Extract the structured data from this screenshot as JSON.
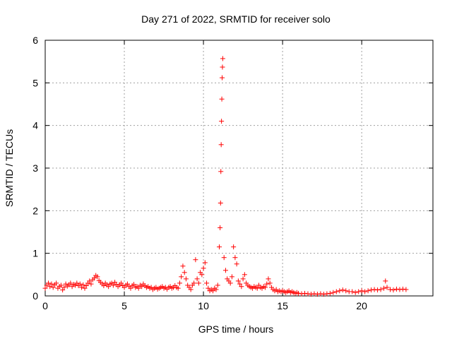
{
  "chart_data": {
    "type": "scatter",
    "title": "Day 271 of 2022, SRMTID for receiver solo",
    "xlabel": "GPS time / hours",
    "ylabel": "SRMTID / TECUs",
    "xlim": [
      0,
      24.5
    ],
    "ylim": [
      0,
      6
    ],
    "x_ticks": [
      0,
      5,
      10,
      15,
      20
    ],
    "y_ticks": [
      0,
      1,
      2,
      3,
      4,
      5,
      6
    ],
    "x_tick_labels": [
      "0",
      "5",
      "10",
      "15",
      "20"
    ],
    "y_tick_labels": [
      "0",
      "1",
      "2",
      "3",
      "4",
      "5",
      "6"
    ],
    "grid": true,
    "marker": "plus",
    "color": "#ff0000",
    "series": [
      {
        "name": "SRMTID",
        "points": [
          [
            0.0,
            0.18
          ],
          [
            0.1,
            0.25
          ],
          [
            0.2,
            0.3
          ],
          [
            0.3,
            0.22
          ],
          [
            0.4,
            0.28
          ],
          [
            0.5,
            0.2
          ],
          [
            0.6,
            0.26
          ],
          [
            0.7,
            0.3
          ],
          [
            0.8,
            0.18
          ],
          [
            0.9,
            0.22
          ],
          [
            1.0,
            0.25
          ],
          [
            1.1,
            0.14
          ],
          [
            1.2,
            0.2
          ],
          [
            1.3,
            0.28
          ],
          [
            1.4,
            0.23
          ],
          [
            1.5,
            0.26
          ],
          [
            1.6,
            0.3
          ],
          [
            1.7,
            0.22
          ],
          [
            1.8,
            0.27
          ],
          [
            1.9,
            0.25
          ],
          [
            2.0,
            0.3
          ],
          [
            2.1,
            0.24
          ],
          [
            2.2,
            0.28
          ],
          [
            2.3,
            0.2
          ],
          [
            2.4,
            0.26
          ],
          [
            2.5,
            0.18
          ],
          [
            2.6,
            0.24
          ],
          [
            2.7,
            0.3
          ],
          [
            2.8,
            0.35
          ],
          [
            2.9,
            0.28
          ],
          [
            3.0,
            0.38
          ],
          [
            3.1,
            0.42
          ],
          [
            3.2,
            0.48
          ],
          [
            3.3,
            0.45
          ],
          [
            3.4,
            0.36
          ],
          [
            3.5,
            0.32
          ],
          [
            3.6,
            0.28
          ],
          [
            3.7,
            0.24
          ],
          [
            3.8,
            0.3
          ],
          [
            3.9,
            0.26
          ],
          [
            4.0,
            0.22
          ],
          [
            4.1,
            0.28
          ],
          [
            4.2,
            0.3
          ],
          [
            4.3,
            0.25
          ],
          [
            4.4,
            0.32
          ],
          [
            4.5,
            0.27
          ],
          [
            4.6,
            0.22
          ],
          [
            4.7,
            0.26
          ],
          [
            4.8,
            0.3
          ],
          [
            4.9,
            0.24
          ],
          [
            5.0,
            0.2
          ],
          [
            5.1,
            0.25
          ],
          [
            5.2,
            0.28
          ],
          [
            5.3,
            0.22
          ],
          [
            5.4,
            0.18
          ],
          [
            5.5,
            0.24
          ],
          [
            5.6,
            0.27
          ],
          [
            5.7,
            0.2
          ],
          [
            5.8,
            0.22
          ],
          [
            5.9,
            0.18
          ],
          [
            6.0,
            0.25
          ],
          [
            6.1,
            0.22
          ],
          [
            6.2,
            0.28
          ],
          [
            6.3,
            0.24
          ],
          [
            6.4,
            0.2
          ],
          [
            6.5,
            0.22
          ],
          [
            6.6,
            0.18
          ],
          [
            6.7,
            0.2
          ],
          [
            6.8,
            0.15
          ],
          [
            6.9,
            0.18
          ],
          [
            7.0,
            0.2
          ],
          [
            7.1,
            0.16
          ],
          [
            7.2,
            0.18
          ],
          [
            7.3,
            0.2
          ],
          [
            7.4,
            0.22
          ],
          [
            7.5,
            0.18
          ],
          [
            7.6,
            0.2
          ],
          [
            7.7,
            0.16
          ],
          [
            7.8,
            0.2
          ],
          [
            7.9,
            0.22
          ],
          [
            8.0,
            0.18
          ],
          [
            8.1,
            0.2
          ],
          [
            8.2,
            0.24
          ],
          [
            8.3,
            0.2
          ],
          [
            8.4,
            0.18
          ],
          [
            8.5,
            0.3
          ],
          [
            8.6,
            0.45
          ],
          [
            8.7,
            0.7
          ],
          [
            8.8,
            0.55
          ],
          [
            8.9,
            0.4
          ],
          [
            9.0,
            0.25
          ],
          [
            9.1,
            0.2
          ],
          [
            9.2,
            0.15
          ],
          [
            9.3,
            0.25
          ],
          [
            9.4,
            0.3
          ],
          [
            9.5,
            0.85
          ],
          [
            9.6,
            0.4
          ],
          [
            9.7,
            0.3
          ],
          [
            9.8,
            0.55
          ],
          [
            9.9,
            0.5
          ],
          [
            10.0,
            0.65
          ],
          [
            10.1,
            0.78
          ],
          [
            10.2,
            0.3
          ],
          [
            10.3,
            0.18
          ],
          [
            10.4,
            0.12
          ],
          [
            10.5,
            0.15
          ],
          [
            10.6,
            0.12
          ],
          [
            10.7,
            0.18
          ],
          [
            10.8,
            0.15
          ],
          [
            10.9,
            0.25
          ],
          [
            11.0,
            1.15
          ],
          [
            11.05,
            1.6
          ],
          [
            11.08,
            2.18
          ],
          [
            11.1,
            2.92
          ],
          [
            11.12,
            3.55
          ],
          [
            11.14,
            4.1
          ],
          [
            11.16,
            4.62
          ],
          [
            11.18,
            5.12
          ],
          [
            11.2,
            5.37
          ],
          [
            11.22,
            5.57
          ],
          [
            11.3,
            0.9
          ],
          [
            11.4,
            0.6
          ],
          [
            11.5,
            0.4
          ],
          [
            11.6,
            0.35
          ],
          [
            11.7,
            0.3
          ],
          [
            11.8,
            0.45
          ],
          [
            11.9,
            1.15
          ],
          [
            12.0,
            0.9
          ],
          [
            12.1,
            0.75
          ],
          [
            12.2,
            0.35
          ],
          [
            12.3,
            0.28
          ],
          [
            12.4,
            0.22
          ],
          [
            12.5,
            0.4
          ],
          [
            12.6,
            0.5
          ],
          [
            12.7,
            0.3
          ],
          [
            12.8,
            0.25
          ],
          [
            12.9,
            0.22
          ],
          [
            13.0,
            0.2
          ],
          [
            13.1,
            0.18
          ],
          [
            13.2,
            0.22
          ],
          [
            13.3,
            0.2
          ],
          [
            13.4,
            0.18
          ],
          [
            13.5,
            0.25
          ],
          [
            13.6,
            0.2
          ],
          [
            13.7,
            0.18
          ],
          [
            13.8,
            0.22
          ],
          [
            13.9,
            0.2
          ],
          [
            14.0,
            0.28
          ],
          [
            14.1,
            0.4
          ],
          [
            14.2,
            0.3
          ],
          [
            14.3,
            0.2
          ],
          [
            14.4,
            0.15
          ],
          [
            14.5,
            0.12
          ],
          [
            14.6,
            0.15
          ],
          [
            14.7,
            0.1
          ],
          [
            14.8,
            0.12
          ],
          [
            14.9,
            0.1
          ],
          [
            15.0,
            0.12
          ],
          [
            15.1,
            0.1
          ],
          [
            15.2,
            0.08
          ],
          [
            15.3,
            0.1
          ],
          [
            15.4,
            0.12
          ],
          [
            15.5,
            0.08
          ],
          [
            15.6,
            0.1
          ],
          [
            15.7,
            0.08
          ],
          [
            15.8,
            0.06
          ],
          [
            15.9,
            0.08
          ],
          [
            16.0,
            0.06
          ],
          [
            16.2,
            0.05
          ],
          [
            16.4,
            0.06
          ],
          [
            16.6,
            0.05
          ],
          [
            16.8,
            0.04
          ],
          [
            17.0,
            0.05
          ],
          [
            17.2,
            0.04
          ],
          [
            17.4,
            0.05
          ],
          [
            17.6,
            0.04
          ],
          [
            17.8,
            0.05
          ],
          [
            18.0,
            0.06
          ],
          [
            18.2,
            0.08
          ],
          [
            18.4,
            0.1
          ],
          [
            18.6,
            0.12
          ],
          [
            18.8,
            0.14
          ],
          [
            19.0,
            0.12
          ],
          [
            19.2,
            0.1
          ],
          [
            19.4,
            0.1
          ],
          [
            19.6,
            0.08
          ],
          [
            19.8,
            0.1
          ],
          [
            20.0,
            0.12
          ],
          [
            20.2,
            0.1
          ],
          [
            20.4,
            0.12
          ],
          [
            20.6,
            0.14
          ],
          [
            20.8,
            0.15
          ],
          [
            21.0,
            0.14
          ],
          [
            21.2,
            0.15
          ],
          [
            21.4,
            0.18
          ],
          [
            21.5,
            0.35
          ],
          [
            21.6,
            0.2
          ],
          [
            21.8,
            0.15
          ],
          [
            22.0,
            0.14
          ],
          [
            22.2,
            0.16
          ],
          [
            22.4,
            0.15
          ],
          [
            22.6,
            0.16
          ],
          [
            22.8,
            0.15
          ]
        ]
      }
    ]
  }
}
